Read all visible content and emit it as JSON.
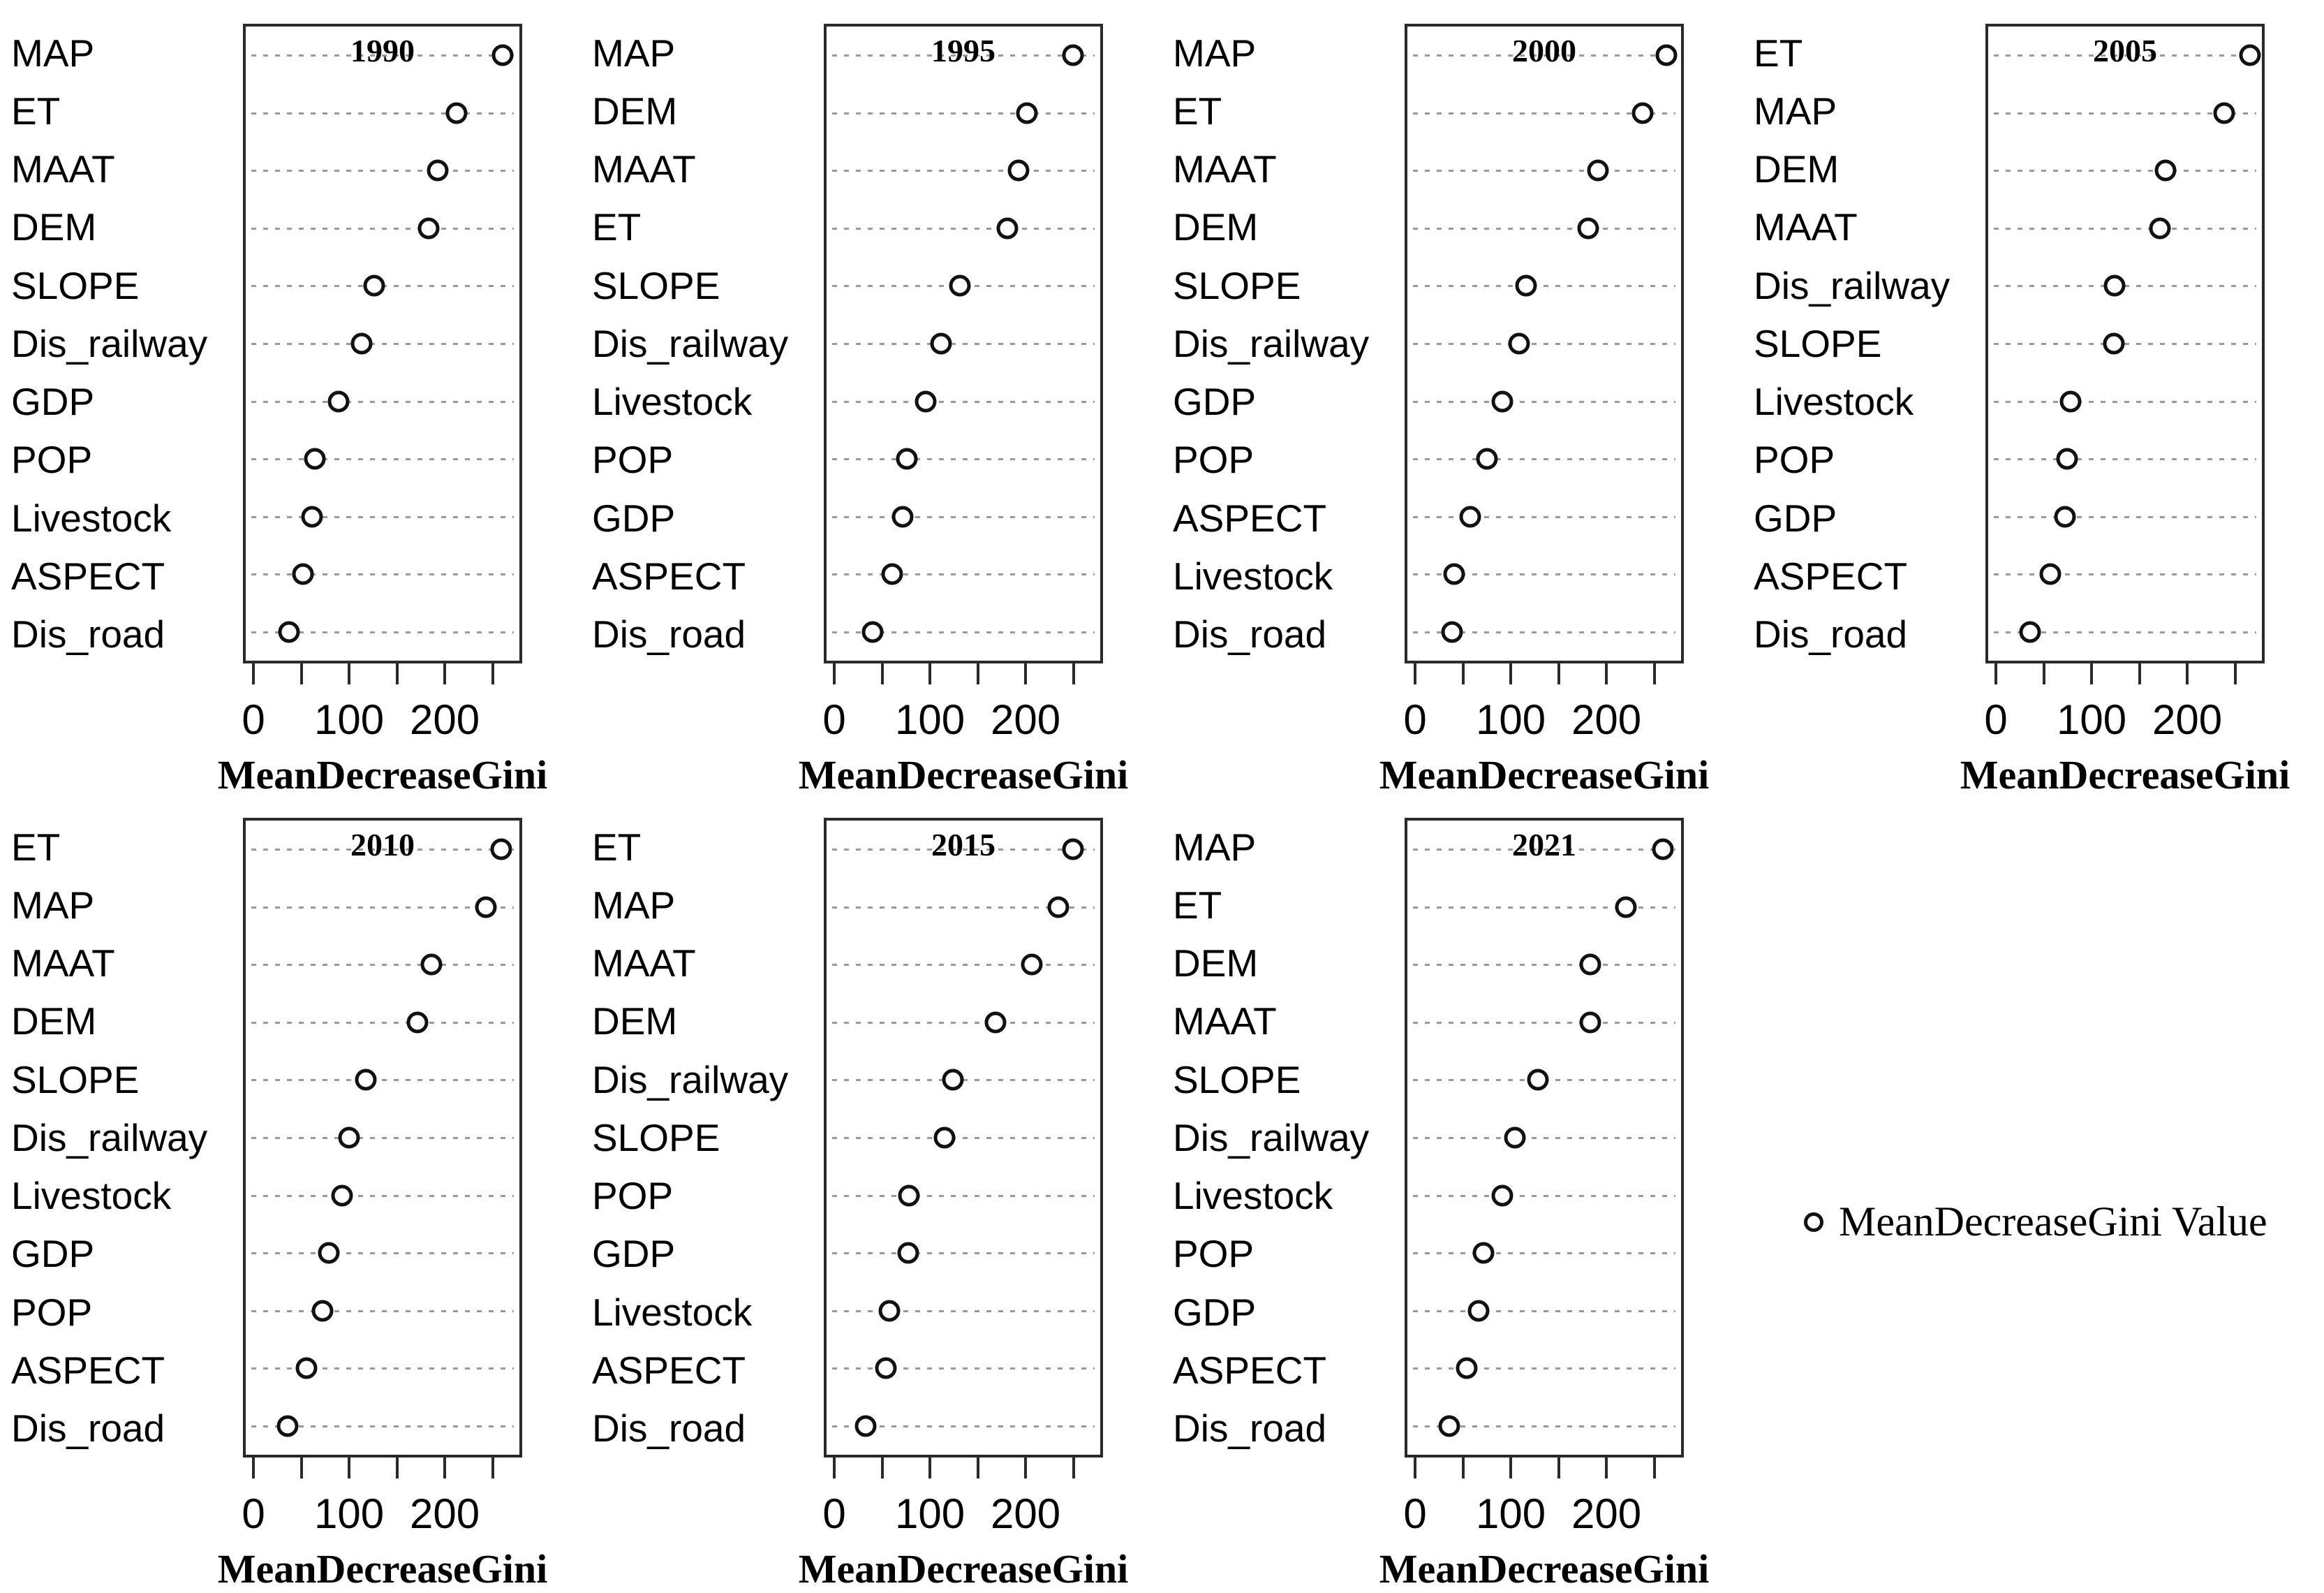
{
  "figure": {
    "kind": "random-forest variable importance dotcharts",
    "marker": "open-circle",
    "grid_color": "#9a9a9a",
    "box_color": "#2a2a2a"
  },
  "legend": {
    "marker_icon": "open-circle",
    "label": "MeanDecreaseGini Value"
  },
  "chart_data": [
    {
      "type": "scatter",
      "title": "1990",
      "xlabel": "MeanDecreaseGini",
      "xlim": [
        -11,
        281
      ],
      "grid": true,
      "legend_position": "none",
      "xticks": [
        0,
        50,
        100,
        150,
        200,
        250
      ],
      "xtick_labels": [
        {
          "value": 0,
          "label": "0"
        },
        {
          "value": 100,
          "label": "100"
        },
        {
          "value": 200,
          "label": "200"
        }
      ],
      "categories": [
        "MAP",
        "ET",
        "MAAT",
        "DEM",
        "SLOPE",
        "Dis_railway",
        "GDP",
        "POP",
        "Livestock",
        "ASPECT",
        "Dis_road"
      ],
      "values": [
        263,
        214,
        194,
        184,
        126,
        113,
        88,
        63,
        60,
        50,
        35
      ]
    },
    {
      "type": "scatter",
      "title": "1995",
      "xlabel": "MeanDecreaseGini",
      "xlim": [
        -11,
        281
      ],
      "grid": true,
      "legend_position": "none",
      "xticks": [
        0,
        50,
        100,
        150,
        200,
        250
      ],
      "xtick_labels": [
        {
          "value": 0,
          "label": "0"
        },
        {
          "value": 100,
          "label": "100"
        },
        {
          "value": 200,
          "label": "200"
        }
      ],
      "categories": [
        "MAP",
        "DEM",
        "MAAT",
        "ET",
        "SLOPE",
        "Dis_railway",
        "Livestock",
        "POP",
        "GDP",
        "ASPECT",
        "Dis_road"
      ],
      "values": [
        252,
        203,
        194,
        182,
        131,
        111,
        95,
        75,
        70,
        59,
        38
      ]
    },
    {
      "type": "scatter",
      "title": "2000",
      "xlabel": "MeanDecreaseGini",
      "xlim": [
        -11,
        281
      ],
      "grid": true,
      "legend_position": "none",
      "xticks": [
        0,
        50,
        100,
        150,
        200,
        250
      ],
      "xtick_labels": [
        {
          "value": 0,
          "label": "0"
        },
        {
          "value": 100,
          "label": "100"
        },
        {
          "value": 200,
          "label": "200"
        }
      ],
      "categories": [
        "MAP",
        "ET",
        "MAAT",
        "DEM",
        "SLOPE",
        "Dis_railway",
        "GDP",
        "POP",
        "ASPECT",
        "Livestock",
        "Dis_road"
      ],
      "values": [
        265,
        240,
        192,
        182,
        116,
        108,
        90,
        74,
        56,
        39,
        37
      ]
    },
    {
      "type": "scatter",
      "title": "2005",
      "xlabel": "MeanDecreaseGini",
      "xlim": [
        -11,
        281
      ],
      "grid": true,
      "legend_position": "none",
      "xticks": [
        0,
        50,
        100,
        150,
        200,
        250
      ],
      "xtick_labels": [
        {
          "value": 0,
          "label": "0"
        },
        {
          "value": 100,
          "label": "100"
        },
        {
          "value": 200,
          "label": "200"
        }
      ],
      "categories": [
        "ET",
        "MAP",
        "DEM",
        "MAAT",
        "Dis_railway",
        "SLOPE",
        "Livestock",
        "POP",
        "GDP",
        "ASPECT",
        "Dis_road"
      ],
      "values": [
        268,
        241,
        178,
        172,
        124,
        123,
        77,
        73,
        71,
        55,
        34
      ]
    },
    {
      "type": "scatter",
      "title": "2010",
      "xlabel": "MeanDecreaseGini",
      "xlim": [
        -11,
        281
      ],
      "grid": true,
      "legend_position": "none",
      "xticks": [
        0,
        50,
        100,
        150,
        200,
        250
      ],
      "xtick_labels": [
        {
          "value": 0,
          "label": "0"
        },
        {
          "value": 100,
          "label": "100"
        },
        {
          "value": 200,
          "label": "200"
        }
      ],
      "categories": [
        "ET",
        "MAP",
        "MAAT",
        "DEM",
        "SLOPE",
        "Dis_railway",
        "Livestock",
        "GDP",
        "POP",
        "ASPECT",
        "Dis_road"
      ],
      "values": [
        262,
        245,
        187,
        172,
        117,
        99,
        92,
        78,
        71,
        54,
        34
      ]
    },
    {
      "type": "scatter",
      "title": "2015",
      "xlabel": "MeanDecreaseGini",
      "xlim": [
        -11,
        281
      ],
      "grid": true,
      "legend_position": "none",
      "xticks": [
        0,
        50,
        100,
        150,
        200,
        250
      ],
      "xtick_labels": [
        {
          "value": 0,
          "label": "0"
        },
        {
          "value": 100,
          "label": "100"
        },
        {
          "value": 200,
          "label": "200"
        }
      ],
      "categories": [
        "ET",
        "MAP",
        "MAAT",
        "DEM",
        "Dis_railway",
        "SLOPE",
        "POP",
        "GDP",
        "Livestock",
        "ASPECT",
        "Dis_road"
      ],
      "values": [
        252,
        236,
        208,
        169,
        124,
        115,
        77,
        76,
        56,
        52,
        31
      ]
    },
    {
      "type": "scatter",
      "title": "2021",
      "xlabel": "MeanDecreaseGini",
      "xlim": [
        -11,
        281
      ],
      "grid": true,
      "legend_position": "none",
      "xticks": [
        0,
        50,
        100,
        150,
        200,
        250
      ],
      "xtick_labels": [
        {
          "value": 0,
          "label": "0"
        },
        {
          "value": 100,
          "label": "100"
        },
        {
          "value": 200,
          "label": "200"
        }
      ],
      "categories": [
        "MAP",
        "ET",
        "DEM",
        "MAAT",
        "SLOPE",
        "Dis_railway",
        "Livestock",
        "POP",
        "GDP",
        "ASPECT",
        "Dis_road"
      ],
      "values": [
        262,
        222,
        184,
        184,
        128,
        104,
        90,
        70,
        65,
        52,
        34
      ]
    }
  ]
}
